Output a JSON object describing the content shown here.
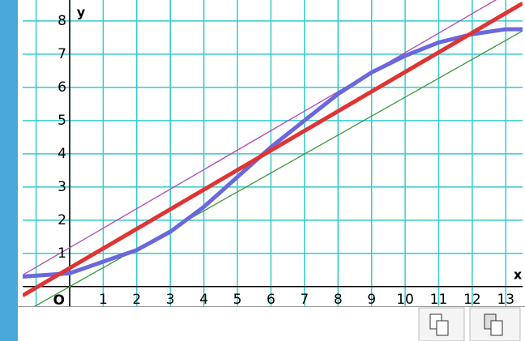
{
  "chart_data": {
    "type": "line",
    "axis_labels": {
      "x": "x",
      "y": "y"
    },
    "origin_label": "O",
    "xlim": [
      -1.4,
      13.5
    ],
    "ylim": [
      -0.59,
      8.63
    ],
    "xticks": [
      1,
      2,
      3,
      4,
      5,
      6,
      7,
      8,
      9,
      10,
      11,
      12,
      13
    ],
    "yticks": [
      1,
      2,
      3,
      4,
      5,
      6,
      7,
      8
    ],
    "xgrid": [
      -1,
      0,
      1,
      2,
      3,
      4,
      5,
      6,
      7,
      8,
      9,
      10,
      11,
      12,
      13
    ],
    "ygrid": [
      0,
      1,
      2,
      3,
      4,
      5,
      6,
      7,
      8
    ],
    "grid": true,
    "grid_color": "#33cccc",
    "series": [
      {
        "color": "#b048b8",
        "width": 1.3,
        "x": [
          -1.4,
          13.5
        ],
        "values": [
          0.35,
          9.1
        ]
      },
      {
        "color": "#3a9a3a",
        "width": 1.3,
        "x": [
          -1.4,
          13.5
        ],
        "values": [
          -0.8,
          7.7
        ]
      },
      {
        "color": "#6a68dc",
        "width": 5,
        "x": [
          -1.4,
          0,
          1,
          2,
          3,
          4,
          5,
          6,
          7,
          8,
          9,
          10,
          11,
          12,
          13,
          13.5
        ],
        "values": [
          0.3,
          0.4,
          0.75,
          1.1,
          1.65,
          2.4,
          3.3,
          4.2,
          5.0,
          5.8,
          6.45,
          6.95,
          7.35,
          7.6,
          7.75,
          7.75
        ]
      },
      {
        "color": "#e03434",
        "width": 5,
        "x": [
          -1.4,
          13.5
        ],
        "values": [
          -0.27,
          8.53
        ]
      }
    ]
  }
}
